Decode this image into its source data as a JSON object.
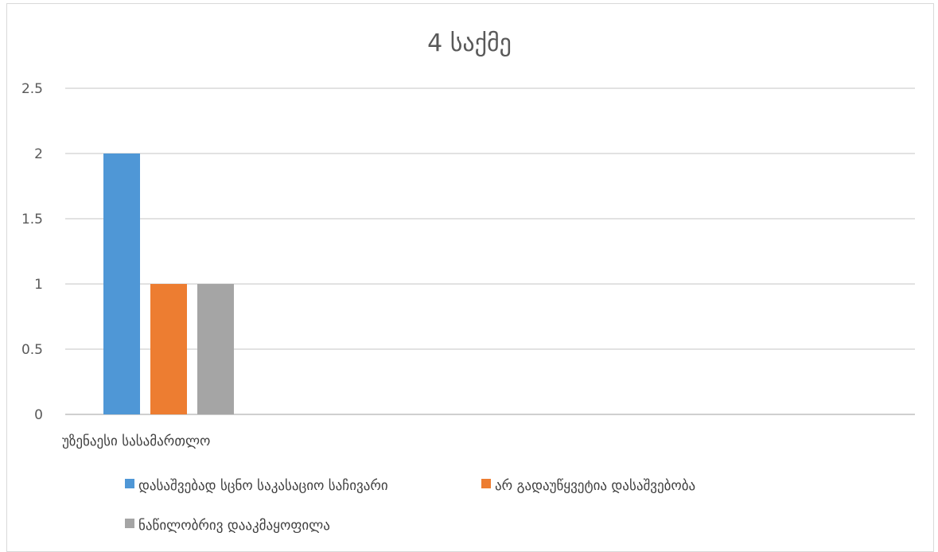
{
  "chart_data": {
    "type": "bar",
    "title": "4 საქმე",
    "categories": [
      "უზენაესი სასამართლო"
    ],
    "series": [
      {
        "name": "დასაშვებად სცნო საკასაციო საჩივარი",
        "values": [
          2
        ],
        "color": "#4f97d6"
      },
      {
        "name": "არ გადაუწყვეტია დასაშვებობა",
        "values": [
          1
        ],
        "color": "#ed7d31"
      },
      {
        "name": "ნაწილობრივ დააკმაყოფილა",
        "values": [
          1
        ],
        "color": "#a5a5a5"
      }
    ],
    "y_ticks": [
      "0",
      "0.5",
      "1",
      "1.5",
      "2",
      "2.5"
    ],
    "ylim": [
      0,
      2.5
    ],
    "grid": true,
    "legend_position": "bottom"
  }
}
